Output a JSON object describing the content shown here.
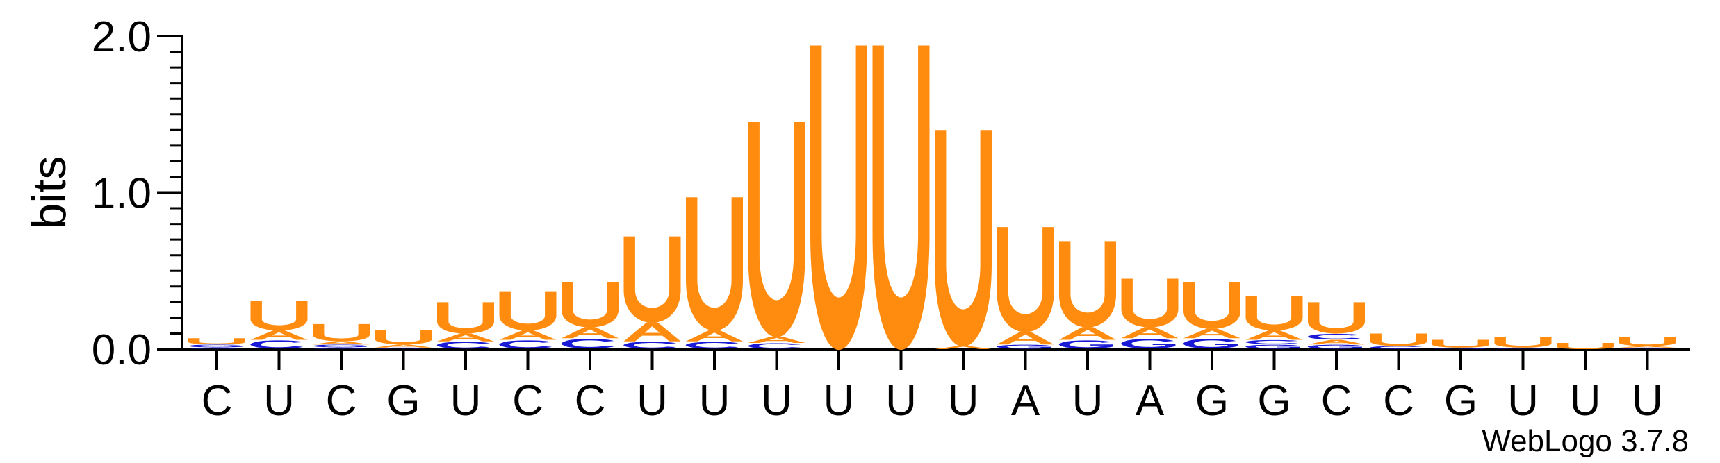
{
  "chart_data": {
    "type": "sequence-logo",
    "ylabel": "bits",
    "ylim": [
      0,
      2.0
    ],
    "yticks": [
      {
        "value": 0.0,
        "label": "0.0"
      },
      {
        "value": 1.0,
        "label": "1.0"
      },
      {
        "value": 2.0,
        "label": "2.0"
      }
    ],
    "categories": [
      "C",
      "U",
      "C",
      "G",
      "U",
      "C",
      "C",
      "U",
      "U",
      "U",
      "U",
      "U",
      "U",
      "A",
      "U",
      "A",
      "G",
      "G",
      "C",
      "C",
      "G",
      "U",
      "U",
      "U"
    ],
    "colors": {
      "U": "#ff8c0f",
      "A": "#ff8c0f",
      "C": "#1a1ad6",
      "G": "#1a1ad6"
    },
    "positions": [
      {
        "letters": [
          {
            "base": "C",
            "bits": 0.01
          },
          {
            "base": "G",
            "bits": 0.02
          },
          {
            "base": "U",
            "bits": 0.04
          }
        ]
      },
      {
        "letters": [
          {
            "base": "C",
            "bits": 0.06
          },
          {
            "base": "A",
            "bits": 0.06
          },
          {
            "base": "U",
            "bits": 0.19
          }
        ]
      },
      {
        "letters": [
          {
            "base": "C",
            "bits": 0.01
          },
          {
            "base": "G",
            "bits": 0.02
          },
          {
            "base": "A",
            "bits": 0.02
          },
          {
            "base": "U",
            "bits": 0.11
          }
        ]
      },
      {
        "letters": [
          {
            "base": "C",
            "bits": 0.01
          },
          {
            "base": "A",
            "bits": 0.02
          },
          {
            "base": "U",
            "bits": 0.09
          }
        ]
      },
      {
        "letters": [
          {
            "base": "C",
            "bits": 0.05
          },
          {
            "base": "A",
            "bits": 0.05
          },
          {
            "base": "U",
            "bits": 0.2
          }
        ]
      },
      {
        "letters": [
          {
            "base": "C",
            "bits": 0.06
          },
          {
            "base": "A",
            "bits": 0.06
          },
          {
            "base": "U",
            "bits": 0.25
          }
        ]
      },
      {
        "letters": [
          {
            "base": "C",
            "bits": 0.07
          },
          {
            "base": "A",
            "bits": 0.07
          },
          {
            "base": "U",
            "bits": 0.29
          }
        ]
      },
      {
        "letters": [
          {
            "base": "C",
            "bits": 0.05
          },
          {
            "base": "A",
            "bits": 0.12
          },
          {
            "base": "U",
            "bits": 0.55
          }
        ]
      },
      {
        "letters": [
          {
            "base": "C",
            "bits": 0.05
          },
          {
            "base": "A",
            "bits": 0.07
          },
          {
            "base": "U",
            "bits": 0.85
          }
        ]
      },
      {
        "letters": [
          {
            "base": "C",
            "bits": 0.04
          },
          {
            "base": "A",
            "bits": 0.04
          },
          {
            "base": "U",
            "bits": 1.37
          }
        ]
      },
      {
        "letters": [
          {
            "base": "U",
            "bits": 1.94
          }
        ]
      },
      {
        "letters": [
          {
            "base": "U",
            "bits": 1.94
          }
        ]
      },
      {
        "letters": [
          {
            "base": "A",
            "bits": 0.02
          },
          {
            "base": "U",
            "bits": 1.38
          }
        ]
      },
      {
        "letters": [
          {
            "base": "G",
            "bits": 0.03
          },
          {
            "base": "A",
            "bits": 0.08
          },
          {
            "base": "U",
            "bits": 0.67
          }
        ]
      },
      {
        "letters": [
          {
            "base": "G",
            "bits": 0.06
          },
          {
            "base": "A",
            "bits": 0.08
          },
          {
            "base": "U",
            "bits": 0.55
          }
        ]
      },
      {
        "letters": [
          {
            "base": "G",
            "bits": 0.07
          },
          {
            "base": "A",
            "bits": 0.07
          },
          {
            "base": "U",
            "bits": 0.31
          }
        ]
      },
      {
        "letters": [
          {
            "base": "G",
            "bits": 0.07
          },
          {
            "base": "A",
            "bits": 0.06
          },
          {
            "base": "U",
            "bits": 0.3
          }
        ]
      },
      {
        "letters": [
          {
            "base": "G",
            "bits": 0.03
          },
          {
            "base": "C",
            "bits": 0.03
          },
          {
            "base": "A",
            "bits": 0.06
          },
          {
            "base": "U",
            "bits": 0.22
          }
        ]
      },
      {
        "letters": [
          {
            "base": "G",
            "bits": 0.03
          },
          {
            "base": "A",
            "bits": 0.03
          },
          {
            "base": "C",
            "bits": 0.04
          },
          {
            "base": "U",
            "bits": 0.2
          }
        ]
      },
      {
        "letters": [
          {
            "base": "C",
            "bits": 0.02
          },
          {
            "base": "U",
            "bits": 0.08
          }
        ]
      },
      {
        "letters": [
          {
            "base": "G",
            "bits": 0.01
          },
          {
            "base": "U",
            "bits": 0.05
          }
        ]
      },
      {
        "letters": [
          {
            "base": "C",
            "bits": 0.01
          },
          {
            "base": "U",
            "bits": 0.07
          }
        ]
      },
      {
        "letters": [
          {
            "base": "U",
            "bits": 0.04
          }
        ]
      },
      {
        "letters": [
          {
            "base": "C",
            "bits": 0.01
          },
          {
            "base": "A",
            "bits": 0.01
          },
          {
            "base": "U",
            "bits": 0.06
          }
        ]
      }
    ],
    "footer": "WebLogo 3.7.8"
  }
}
